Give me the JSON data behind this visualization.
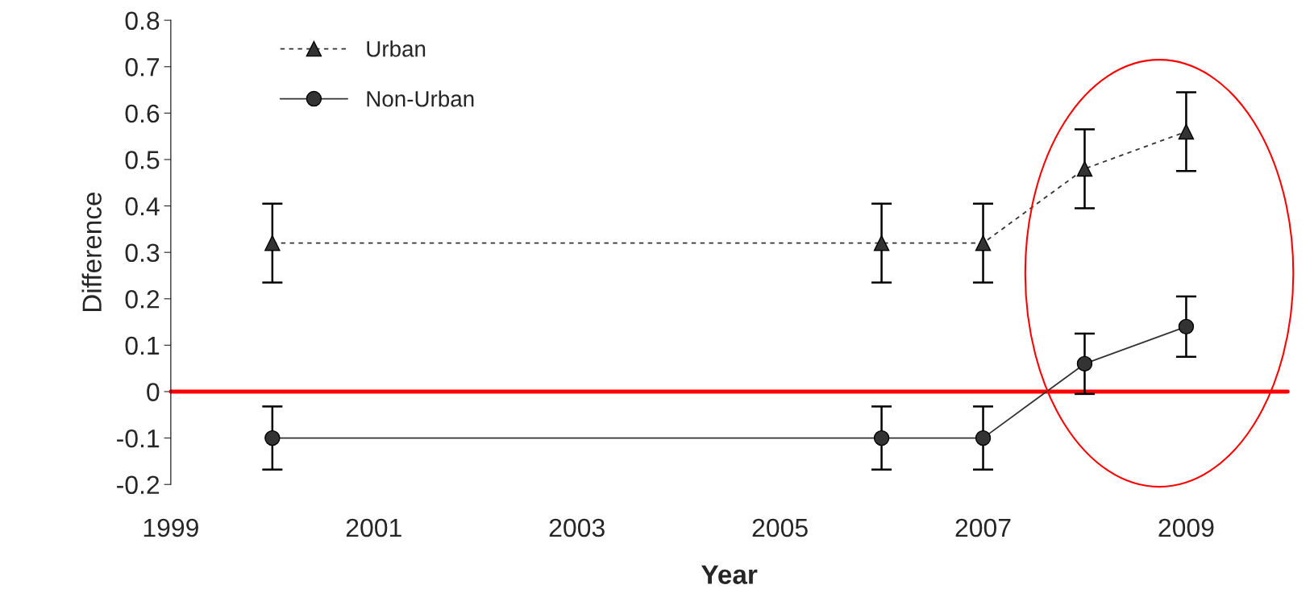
{
  "chart_data": {
    "type": "line",
    "xlabel": "Year",
    "ylabel": "Difference",
    "xlim": [
      1999,
      2010
    ],
    "xticks": [
      1999,
      2001,
      2003,
      2005,
      2007,
      2009
    ],
    "ylim": [
      -0.2,
      0.8
    ],
    "yticks": [
      {
        "value": -0.2,
        "label": "-0.2"
      },
      {
        "value": -0.1,
        "label": "-0.1"
      },
      0,
      0.1,
      0.2,
      0.3,
      0.4,
      0.5,
      0.6,
      0.7,
      0.8
    ],
    "x": [
      2000,
      2006,
      2007,
      2008,
      2009
    ],
    "series": [
      {
        "name": "Urban",
        "color": "#333333",
        "marker": "triangle",
        "line_style": "dashed",
        "values": [
          0.32,
          0.32,
          0.32,
          0.48,
          0.56
        ],
        "errors": [
          0.085,
          0.085,
          0.085,
          0.085,
          0.085
        ]
      },
      {
        "name": "Non-Urban",
        "color": "#333333",
        "marker": "circle",
        "line_style": "solid",
        "values": [
          -0.1,
          -0.1,
          -0.1,
          0.06,
          0.14
        ],
        "errors": [
          0.068,
          0.068,
          0.068,
          0.065,
          0.065
        ]
      }
    ],
    "ref_lines": [
      {
        "axis": "y",
        "value": 0,
        "color": "#ff0000"
      }
    ],
    "legend": "top left",
    "grid": false
  }
}
